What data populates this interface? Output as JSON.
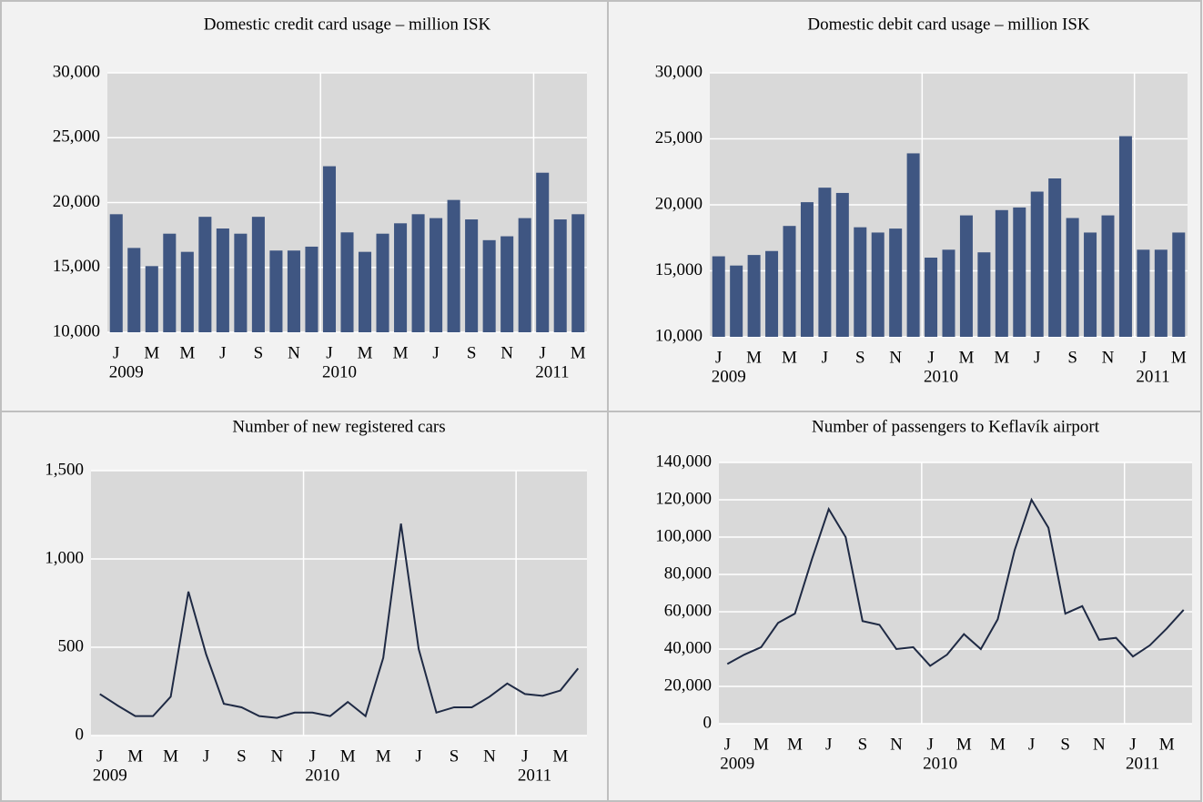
{
  "chart_data": [
    {
      "type": "bar",
      "title": "Domestic credit card usage – million ISK",
      "color": "#3f5682",
      "categories": [
        "J",
        null,
        "M",
        null,
        "M",
        null,
        "J",
        null,
        "S",
        null,
        "N",
        null,
        "J",
        null,
        "M",
        null,
        "M",
        null,
        "J",
        null,
        "S",
        null,
        "N",
        null,
        "J",
        null,
        "M"
      ],
      "year_labels": [
        "2009",
        null,
        null,
        null,
        null,
        null,
        null,
        null,
        null,
        null,
        null,
        null,
        "2010",
        null,
        null,
        null,
        null,
        null,
        null,
        null,
        null,
        null,
        null,
        null,
        "2011",
        null,
        null
      ],
      "values": [
        19100,
        16500,
        15100,
        17600,
        16200,
        18900,
        18000,
        17600,
        18900,
        16300,
        16300,
        16600,
        22800,
        17700,
        16200,
        17600,
        18400,
        19100,
        18800,
        20200,
        18700,
        17100,
        17400,
        18800,
        22300,
        18700,
        19100
      ],
      "ylim": [
        10000,
        30000
      ],
      "yticks": [
        {
          "value": 10000,
          "label": "10,000"
        },
        {
          "value": 15000,
          "label": "15,000"
        },
        {
          "value": 20000,
          "label": "20,000"
        },
        {
          "value": 25000,
          "label": "25,000"
        },
        {
          "value": 30000,
          "label": "30,000"
        }
      ],
      "grid": true
    },
    {
      "type": "bar",
      "title": "Domestic debit card usage – million ISK",
      "color": "#3f5682",
      "categories": [
        "J",
        null,
        "M",
        null,
        "M",
        null,
        "J",
        null,
        "S",
        null,
        "N",
        null,
        "J",
        null,
        "M",
        null,
        "M",
        null,
        "J",
        null,
        "S",
        null,
        "N",
        null,
        "J",
        null,
        "M"
      ],
      "year_labels": [
        "2009",
        null,
        null,
        null,
        null,
        null,
        null,
        null,
        null,
        null,
        null,
        null,
        "2010",
        null,
        null,
        null,
        null,
        null,
        null,
        null,
        null,
        null,
        null,
        null,
        "2011",
        null,
        null
      ],
      "values": [
        16100,
        15400,
        16200,
        16500,
        18400,
        20200,
        21300,
        20900,
        18300,
        17900,
        18200,
        23900,
        16000,
        16600,
        19200,
        16400,
        19600,
        19800,
        21000,
        22000,
        19000,
        17900,
        19200,
        25200,
        16600,
        16600,
        17900
      ],
      "ylim": [
        10000,
        30000
      ],
      "yticks": [
        {
          "value": 10000,
          "label": "10,000"
        },
        {
          "value": 15000,
          "label": "15,000"
        },
        {
          "value": 20000,
          "label": "20,000"
        },
        {
          "value": 25000,
          "label": "25,000"
        },
        {
          "value": 30000,
          "label": "30,000"
        }
      ],
      "grid": true
    },
    {
      "type": "line",
      "title": "Number of new registered cars",
      "color": "#1f2a44",
      "categories": [
        "J",
        null,
        "M",
        null,
        "M",
        null,
        "J",
        null,
        "S",
        null,
        "N",
        null,
        "J",
        null,
        "M",
        null,
        "M",
        null,
        "J",
        null,
        "S",
        null,
        "N",
        null,
        "J",
        null,
        "M",
        null
      ],
      "year_labels": [
        "2009",
        null,
        null,
        null,
        null,
        null,
        null,
        null,
        null,
        null,
        null,
        null,
        "2010",
        null,
        null,
        null,
        null,
        null,
        null,
        null,
        null,
        null,
        null,
        null,
        "2011",
        null,
        null,
        null
      ],
      "values": [
        235,
        170,
        110,
        110,
        220,
        815,
        460,
        180,
        160,
        110,
        100,
        130,
        130,
        110,
        190,
        110,
        440,
        1200,
        490,
        130,
        160,
        160,
        220,
        295,
        235,
        225,
        255,
        380
      ],
      "ylim": [
        0,
        1500
      ],
      "yticks": [
        0,
        500,
        {
          "value": 1000,
          "label": "1,000"
        },
        {
          "value": 1500,
          "label": "1,500"
        }
      ],
      "grid": true
    },
    {
      "type": "line",
      "title": "Number of passengers to Keflavík airport",
      "color": "#1f2a44",
      "categories": [
        "J",
        null,
        "M",
        null,
        "M",
        null,
        "J",
        null,
        "S",
        null,
        "N",
        null,
        "J",
        null,
        "M",
        null,
        "M",
        null,
        "J",
        null,
        "S",
        null,
        "N",
        null,
        "J",
        null,
        "M",
        null
      ],
      "year_labels": [
        "2009",
        null,
        null,
        null,
        null,
        null,
        null,
        null,
        null,
        null,
        null,
        null,
        "2010",
        null,
        null,
        null,
        null,
        null,
        null,
        null,
        null,
        null,
        null,
        null,
        "2011",
        null,
        null,
        null
      ],
      "values": [
        32000,
        37000,
        41000,
        54000,
        59000,
        88000,
        115000,
        100000,
        55000,
        53000,
        40000,
        41000,
        31000,
        37000,
        48000,
        40000,
        56000,
        93000,
        120000,
        105000,
        59000,
        63000,
        45000,
        46000,
        36000,
        42000,
        51000,
        61000
      ],
      "ylim": [
        0,
        140000
      ],
      "yticks": [
        0,
        {
          "value": 20000,
          "label": "20,000"
        },
        {
          "value": 40000,
          "label": "40,000"
        },
        {
          "value": 60000,
          "label": "60,000"
        },
        {
          "value": 80000,
          "label": "80,000"
        },
        {
          "value": 100000,
          "label": "100,000"
        },
        {
          "value": 120000,
          "label": "120,000"
        },
        {
          "value": 140000,
          "label": "140,000"
        }
      ],
      "grid": true
    }
  ]
}
